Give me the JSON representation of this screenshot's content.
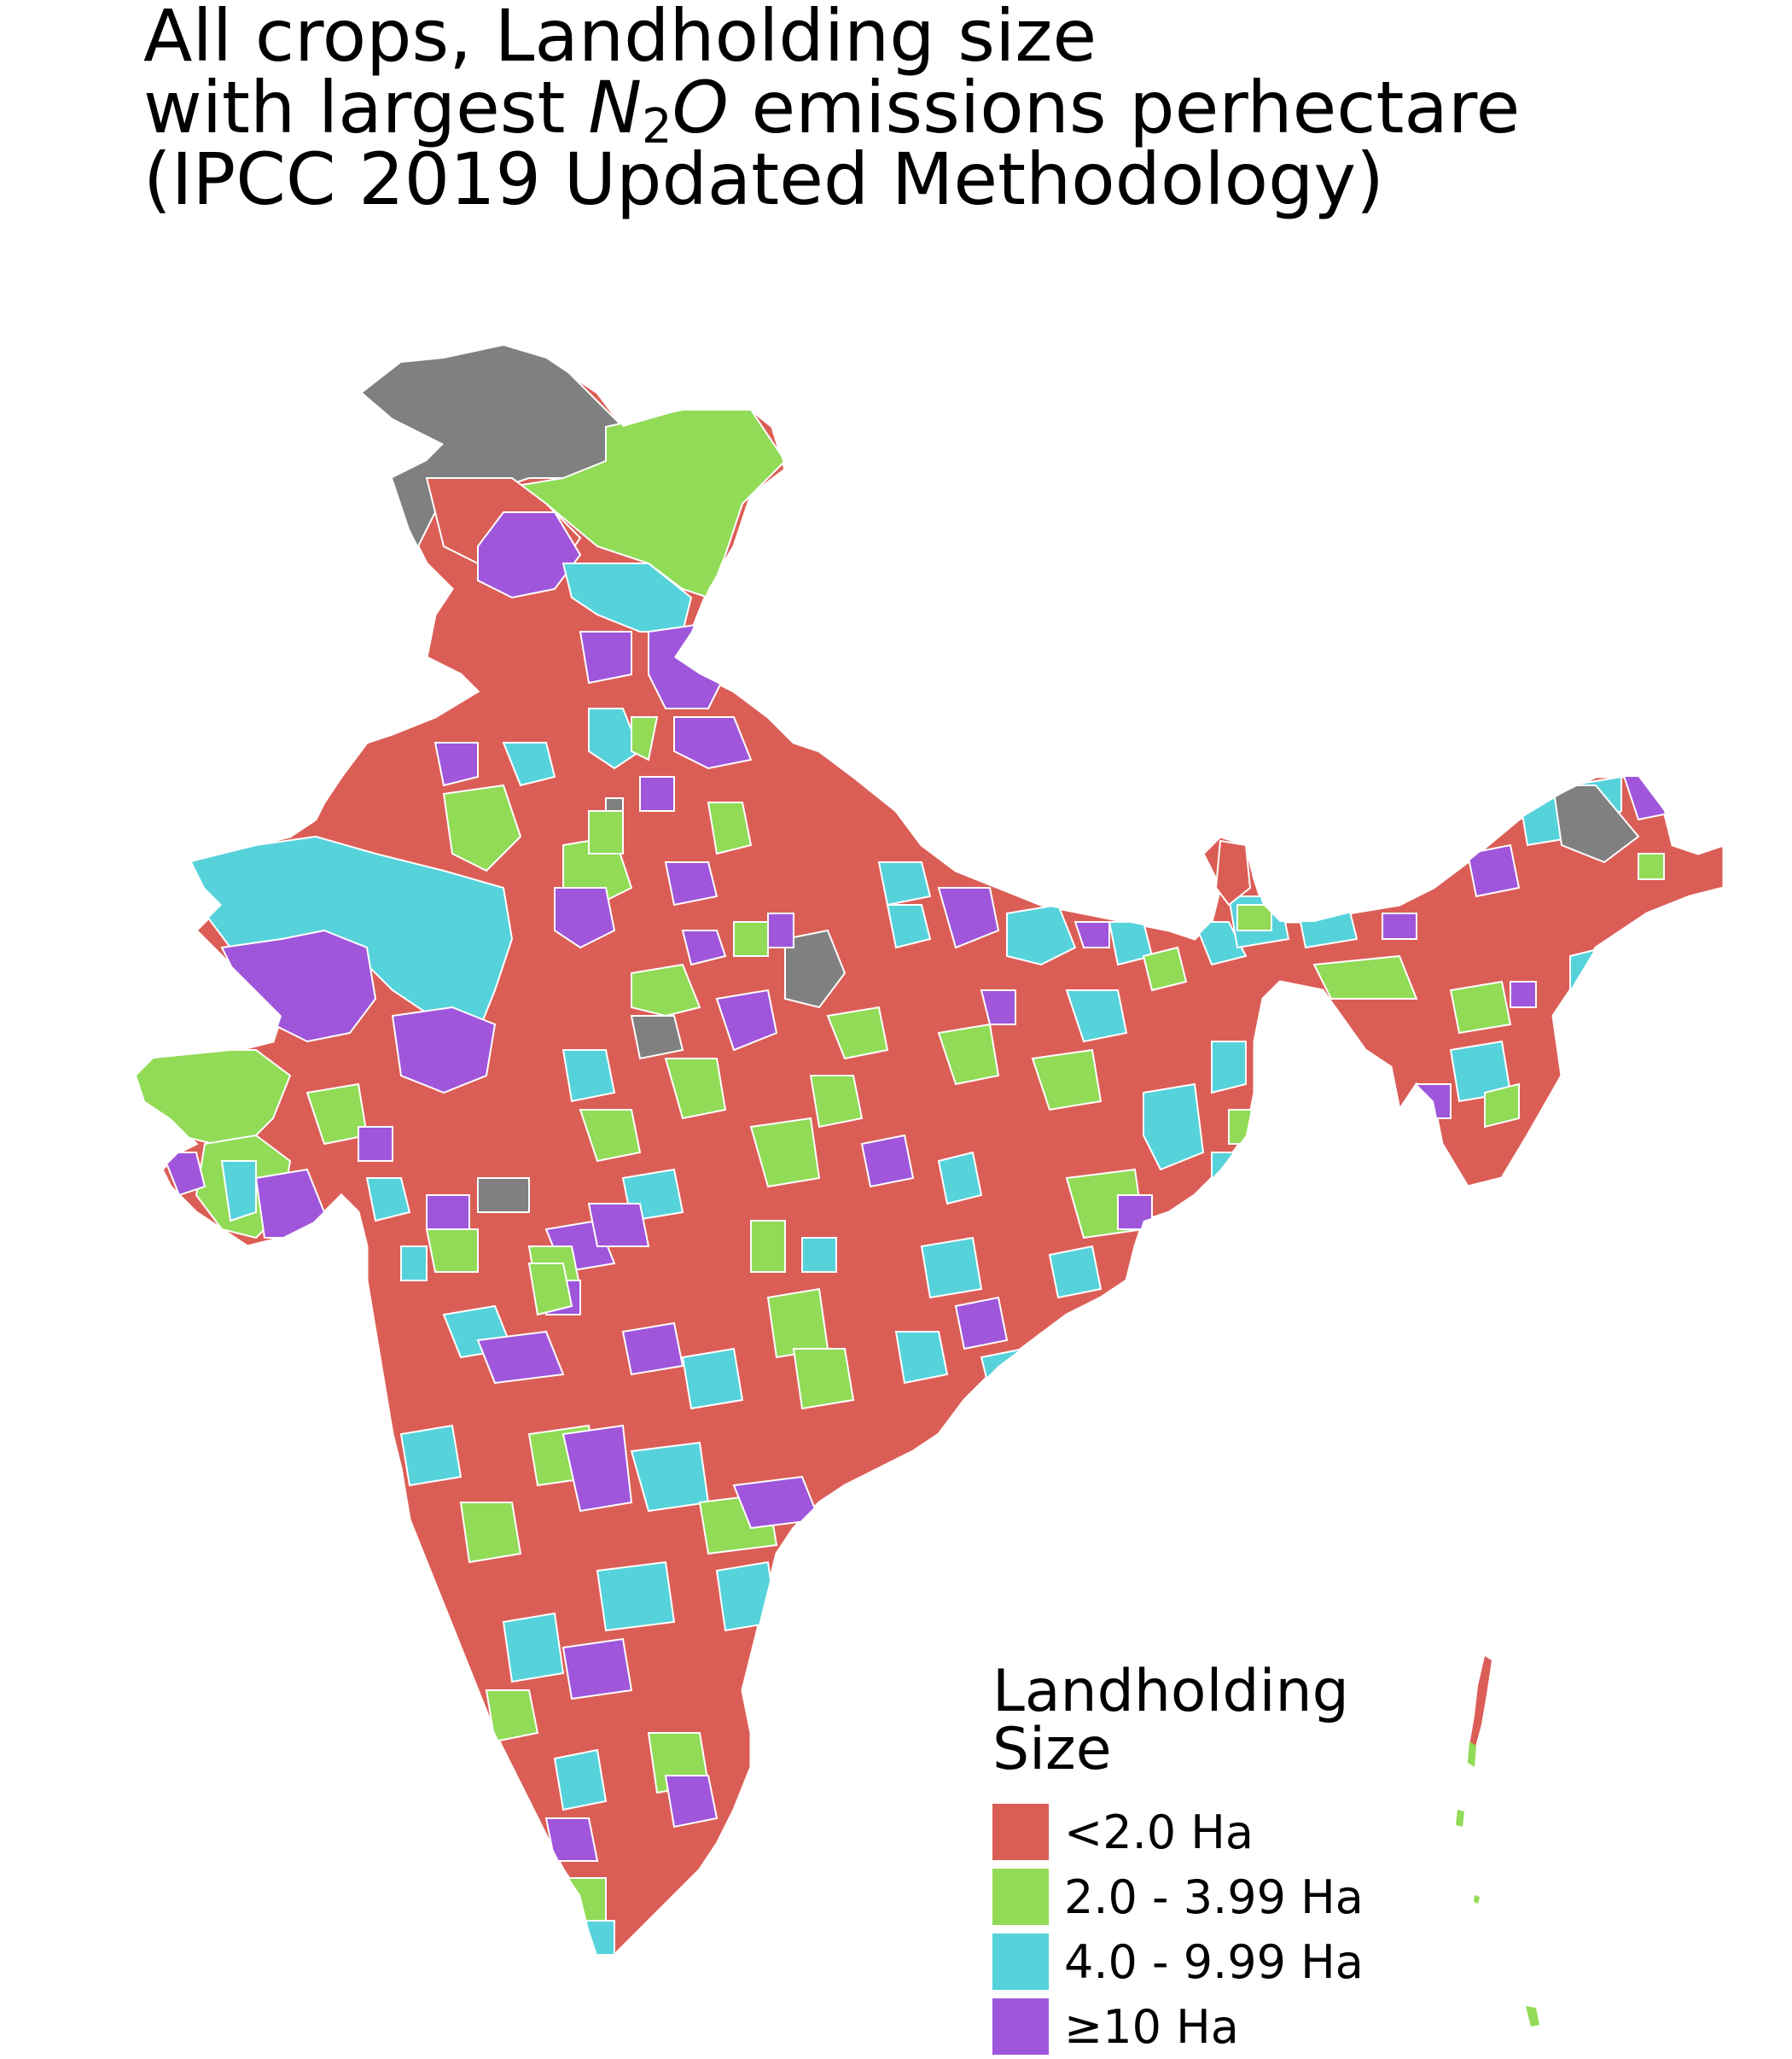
{
  "title": {
    "line1": "All crops, Landholding size",
    "line2_before": "with largest ",
    "line2_n": "N",
    "line2_sub": "2",
    "line2_o": "O",
    "line2_after": " emissions perhectare",
    "line3": "(IPCC 2019 Updated Methodology)"
  },
  "legend": {
    "title_line1": "Landholding",
    "title_line2": "Size",
    "items": [
      {
        "label": "<2.0 Ha",
        "color": "#db5e56"
      },
      {
        "label": "2.0 - 3.99 Ha",
        "color": "#91db57"
      },
      {
        "label": "4.0 - 9.99 Ha",
        "color": "#56d2db"
      },
      {
        "label": "≥10 Ha",
        "color": "#a056db"
      }
    ]
  },
  "map": {
    "no_data_color": "#808080",
    "boundary_color": "#ffffff",
    "regions": [
      {
        "name": "north-kashmir",
        "category": "no-data"
      },
      {
        "name": "ladakh",
        "category": "2.0 - 3.99 Ha"
      },
      {
        "name": "northwest-plains",
        "category": "<2.0 Ha"
      },
      {
        "name": "central-india",
        "category": "<2.0 Ha"
      },
      {
        "name": "west-rajasthan",
        "category": "4.0 - 9.99 Ha"
      },
      {
        "name": "gujarat-kutch",
        "category": "2.0 - 3.99 Ha"
      },
      {
        "name": "south-india",
        "category": "<2.0 Ha"
      },
      {
        "name": "northeast",
        "category": "<2.0 Ha"
      },
      {
        "name": "andaman-nicobar",
        "category": "<2.0 Ha"
      }
    ]
  }
}
